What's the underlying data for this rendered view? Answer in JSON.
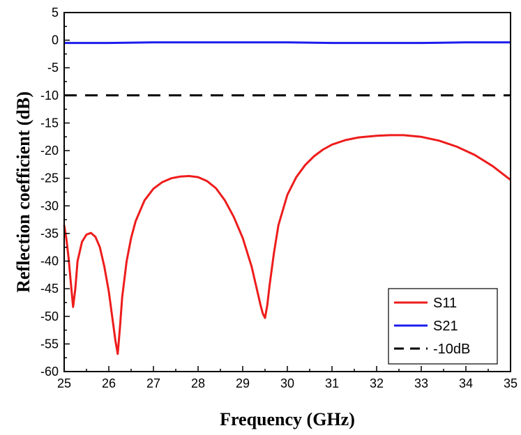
{
  "chart_data": {
    "type": "line",
    "title": "",
    "xlabel": "Frequency (GHz)",
    "ylabel": "Reflection coefficient (dB)",
    "xlim": [
      25,
      35
    ],
    "ylim": [
      -60,
      5
    ],
    "x_ticks": [
      "25",
      "26",
      "27",
      "28",
      "29",
      "30",
      "31",
      "32",
      "33",
      "34",
      "35"
    ],
    "y_ticks": [
      "5",
      "0",
      "-5",
      "-10",
      "-15",
      "-20",
      "-25",
      "-30",
      "-35",
      "-40",
      "-45",
      "-50",
      "-55",
      "-60"
    ],
    "grid": false,
    "legend_position": "bottom-right",
    "series": [
      {
        "name": "S11",
        "color": "#ee1c1c",
        "style": "solid",
        "x": [
          25.0,
          25.05,
          25.1,
          25.15,
          25.2,
          25.25,
          25.3,
          25.4,
          25.5,
          25.6,
          25.7,
          25.8,
          25.9,
          26.0,
          26.1,
          26.15,
          26.2,
          26.25,
          26.3,
          26.4,
          26.5,
          26.6,
          26.8,
          27.0,
          27.2,
          27.4,
          27.6,
          27.8,
          28.0,
          28.2,
          28.4,
          28.6,
          28.8,
          29.0,
          29.2,
          29.3,
          29.4,
          29.45,
          29.5,
          29.55,
          29.6,
          29.7,
          29.8,
          30.0,
          30.2,
          30.4,
          30.6,
          30.8,
          31.0,
          31.3,
          31.6,
          32.0,
          32.3,
          32.6,
          33.0,
          33.4,
          33.8,
          34.2,
          34.6,
          35.0
        ],
        "y": [
          -33.5,
          -36.0,
          -39.5,
          -44.0,
          -48.3,
          -45.0,
          -40.0,
          -36.5,
          -35.2,
          -34.9,
          -35.6,
          -37.5,
          -41.0,
          -45.5,
          -51.5,
          -54.5,
          -56.8,
          -52.0,
          -46.5,
          -40.0,
          -35.8,
          -32.8,
          -29.0,
          -26.9,
          -25.7,
          -25.0,
          -24.7,
          -24.6,
          -24.8,
          -25.5,
          -26.8,
          -29.0,
          -32.0,
          -35.8,
          -41.0,
          -44.5,
          -48.0,
          -49.5,
          -50.3,
          -48.0,
          -44.5,
          -38.5,
          -33.5,
          -28.0,
          -24.8,
          -22.6,
          -21.0,
          -19.8,
          -18.9,
          -18.1,
          -17.6,
          -17.3,
          -17.2,
          -17.2,
          -17.5,
          -18.2,
          -19.3,
          -20.8,
          -22.8,
          -25.3
        ]
      },
      {
        "name": "S21",
        "color": "#1c1cee",
        "style": "solid",
        "x": [
          25.0,
          26.0,
          27.0,
          28.0,
          29.0,
          30.0,
          31.0,
          32.0,
          33.0,
          34.0,
          35.0
        ],
        "y": [
          -0.5,
          -0.5,
          -0.4,
          -0.4,
          -0.4,
          -0.4,
          -0.5,
          -0.5,
          -0.5,
          -0.4,
          -0.4
        ]
      },
      {
        "name": "-10dB",
        "color": "#000000",
        "style": "dashed",
        "x": [
          25.0,
          35.0
        ],
        "y": [
          -10.0,
          -10.0
        ]
      }
    ]
  }
}
